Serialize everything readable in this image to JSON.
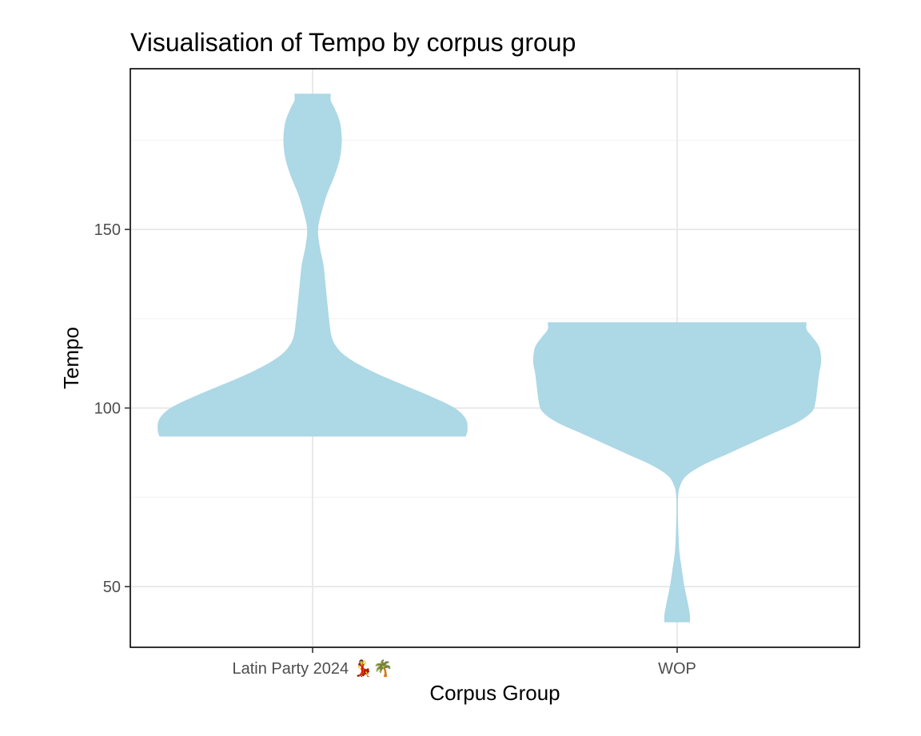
{
  "chart_data": {
    "type": "violin",
    "title": "Visualisation of Tempo by corpus group",
    "xlabel": "Corpus Group",
    "ylabel": "Tempo",
    "categories": [
      "Latin Party 2024 💃🌴",
      "WOP"
    ],
    "yticks": [
      50,
      100,
      150
    ],
    "ylim": [
      33,
      195
    ],
    "grid": true,
    "fill_color": "#add8e6",
    "series": [
      {
        "category": "Latin Party 2024 💃🌴",
        "range": [
          92,
          188
        ],
        "profile": [
          [
            92,
            0.84
          ],
          [
            94,
            0.85
          ],
          [
            97,
            0.84
          ],
          [
            100,
            0.78
          ],
          [
            103,
            0.66
          ],
          [
            106,
            0.52
          ],
          [
            109,
            0.38
          ],
          [
            112,
            0.26
          ],
          [
            115,
            0.17
          ],
          [
            118,
            0.12
          ],
          [
            121,
            0.1
          ],
          [
            125,
            0.09
          ],
          [
            130,
            0.08
          ],
          [
            135,
            0.07
          ],
          [
            140,
            0.06
          ],
          [
            145,
            0.04
          ],
          [
            150,
            0.03
          ],
          [
            155,
            0.05
          ],
          [
            160,
            0.08
          ],
          [
            165,
            0.12
          ],
          [
            170,
            0.15
          ],
          [
            175,
            0.16
          ],
          [
            180,
            0.15
          ],
          [
            184,
            0.12
          ],
          [
            186,
            0.1
          ],
          [
            188,
            0.1
          ]
        ]
      },
      {
        "category": "WOP",
        "range": [
          40,
          124
        ],
        "profile": [
          [
            40,
            0.07
          ],
          [
            42,
            0.07
          ],
          [
            45,
            0.06
          ],
          [
            50,
            0.04
          ],
          [
            55,
            0.025
          ],
          [
            60,
            0.012
          ],
          [
            65,
            0.007
          ],
          [
            70,
            0.004
          ],
          [
            75,
            0.005
          ],
          [
            78,
            0.015
          ],
          [
            81,
            0.05
          ],
          [
            84,
            0.14
          ],
          [
            87,
            0.27
          ],
          [
            90,
            0.4
          ],
          [
            93,
            0.53
          ],
          [
            96,
            0.66
          ],
          [
            99,
            0.74
          ],
          [
            102,
            0.76
          ],
          [
            106,
            0.77
          ],
          [
            110,
            0.78
          ],
          [
            113,
            0.79
          ],
          [
            117,
            0.78
          ],
          [
            120,
            0.74
          ],
          [
            122,
            0.71
          ],
          [
            124,
            0.71
          ]
        ]
      }
    ]
  }
}
